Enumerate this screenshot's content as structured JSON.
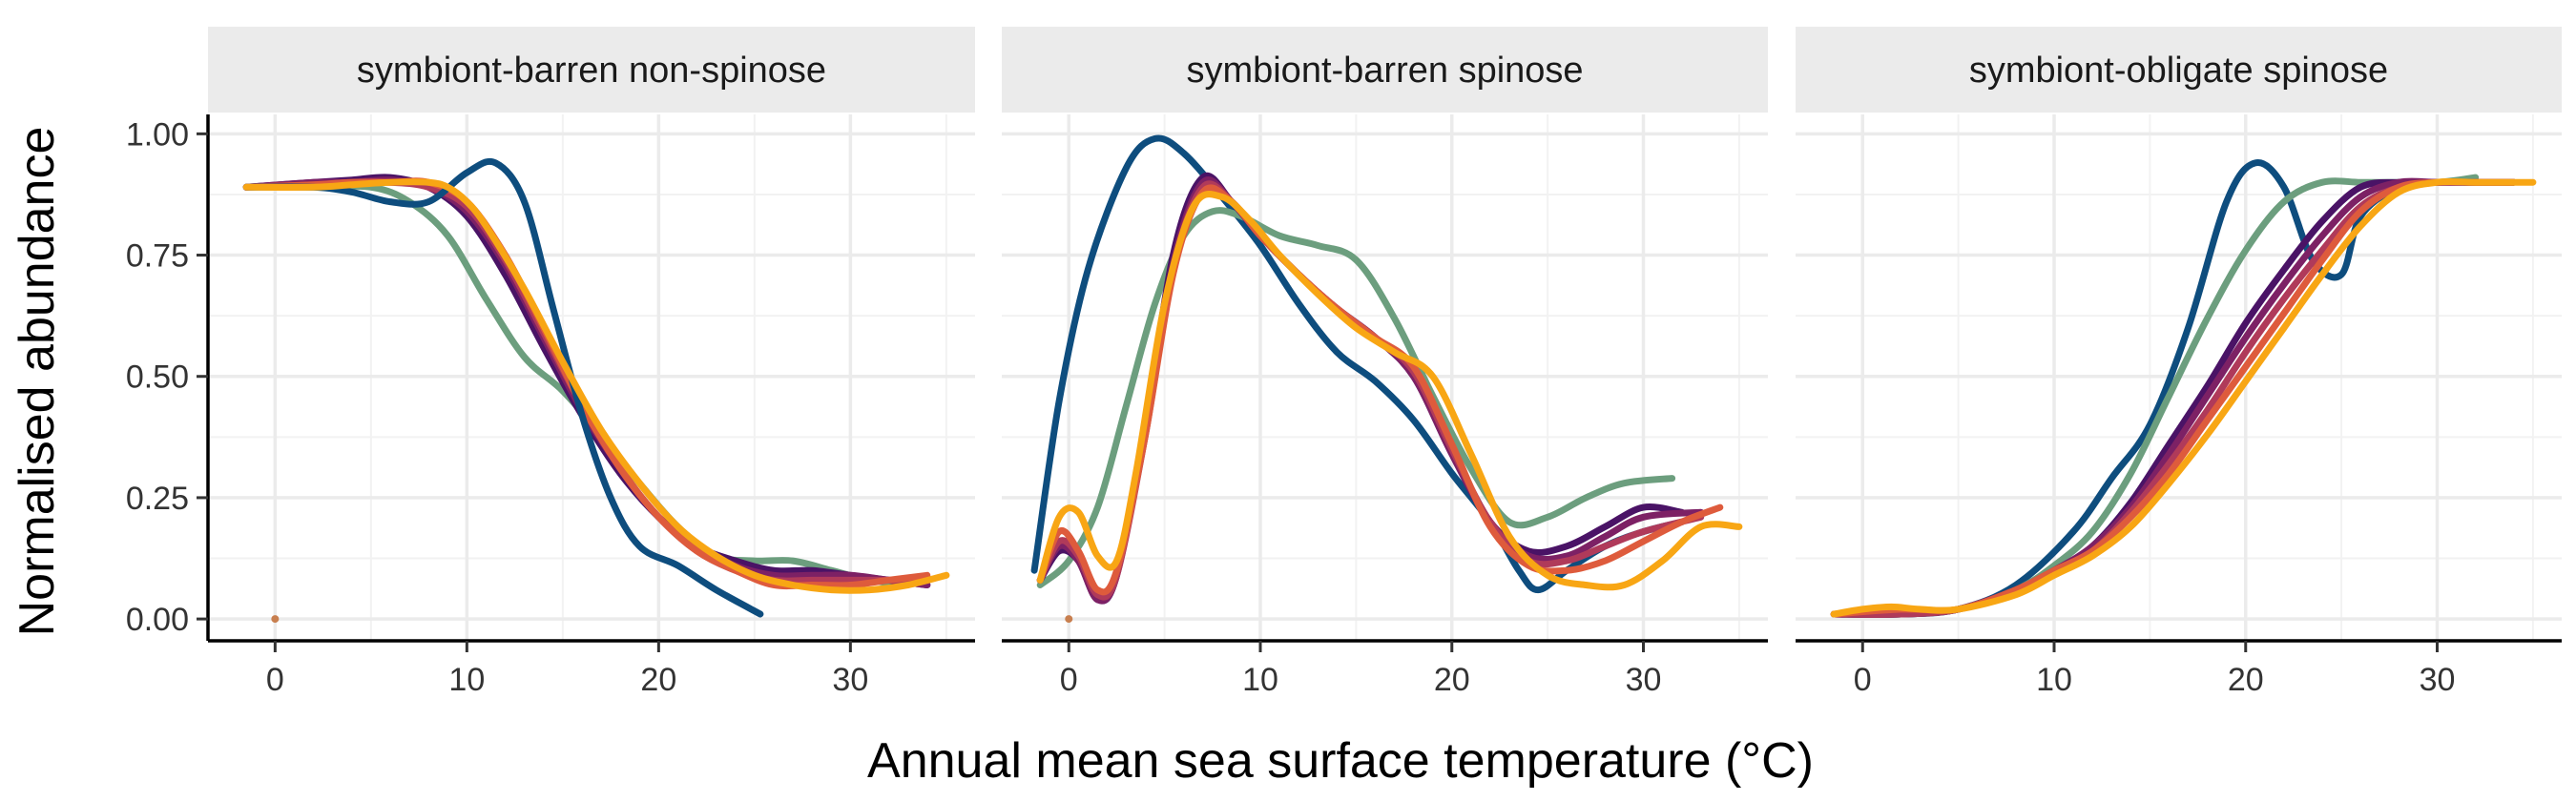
{
  "chart_data": {
    "type": "line",
    "xlabel": "Annual mean sea surface temperature (°C)",
    "ylabel": "Normalised abundance",
    "xlim": [
      -3.5,
      36.5
    ],
    "ylim": [
      -0.045,
      1.04
    ],
    "x_ticks": [
      0,
      10,
      20,
      30
    ],
    "y_ticks": [
      0.0,
      0.25,
      0.5,
      0.75,
      1.0
    ],
    "x_tick_labels": [
      "0",
      "10",
      "20",
      "30"
    ],
    "y_tick_labels": [
      "0.00",
      "0.25",
      "0.50",
      "0.75",
      "1.00"
    ],
    "grid": true,
    "legend": "none",
    "colors": [
      "#0e4d7e",
      "#6c9e7e",
      "#4a1366",
      "#7d2165",
      "#b03a5a",
      "#de5b3c",
      "#f8a614"
    ],
    "panels": [
      {
        "title": "symbiont-barren non-spinose",
        "points": [
          {
            "x": 0,
            "y": 0.0,
            "color": "#c87f4f"
          }
        ],
        "series": [
          {
            "color": "#6c9e7e",
            "x": [
              -1.5,
              2,
              5,
              7,
              9,
              11,
              13,
              15,
              17,
              19,
              21,
              23,
              25,
              27,
              29,
              31,
              33
            ],
            "y": [
              0.89,
              0.89,
              0.89,
              0.86,
              0.79,
              0.66,
              0.54,
              0.47,
              0.38,
              0.28,
              0.19,
              0.13,
              0.12,
              0.12,
              0.1,
              0.08,
              0.07
            ]
          },
          {
            "color": "#4a1366",
            "x": [
              -1.5,
              2,
              4,
              6,
              8,
              10,
              12,
              14,
              16,
              18,
              20,
              22,
              24,
              26,
              28,
              30,
              32,
              34
            ],
            "y": [
              0.89,
              0.9,
              0.905,
              0.91,
              0.89,
              0.83,
              0.71,
              0.56,
              0.42,
              0.3,
              0.21,
              0.15,
              0.12,
              0.1,
              0.1,
              0.09,
              0.08,
              0.07
            ]
          },
          {
            "color": "#7d2165",
            "x": [
              -1.5,
              2,
              4,
              6,
              8,
              10,
              12,
              14,
              16,
              18,
              20,
              22,
              24,
              26,
              28,
              30,
              32,
              34
            ],
            "y": [
              0.89,
              0.9,
              0.9,
              0.905,
              0.89,
              0.84,
              0.73,
              0.58,
              0.43,
              0.31,
              0.21,
              0.15,
              0.11,
              0.09,
              0.09,
              0.09,
              0.08,
              0.07
            ]
          },
          {
            "color": "#b03a5a",
            "x": [
              -1.5,
              2,
              4,
              6,
              8,
              10,
              12,
              14,
              16,
              18,
              20,
              22,
              24,
              26,
              28,
              30,
              32,
              34
            ],
            "y": [
              0.89,
              0.895,
              0.9,
              0.9,
              0.89,
              0.85,
              0.74,
              0.59,
              0.44,
              0.31,
              0.21,
              0.14,
              0.1,
              0.08,
              0.08,
              0.08,
              0.08,
              0.08
            ]
          },
          {
            "color": "#de5b3c",
            "x": [
              -1.5,
              2,
              4,
              6,
              8,
              10,
              12,
              14,
              16,
              18,
              20,
              22,
              24,
              26,
              28,
              30,
              32,
              34
            ],
            "y": [
              0.89,
              0.895,
              0.9,
              0.9,
              0.9,
              0.86,
              0.75,
              0.6,
              0.44,
              0.31,
              0.21,
              0.14,
              0.1,
              0.07,
              0.07,
              0.07,
              0.08,
              0.09
            ]
          },
          {
            "color": "#0e4d7e",
            "x": [
              -1.5,
              2,
              4,
              6,
              8,
              10,
              11.5,
              13,
              14.5,
              16,
              17.5,
              19,
              21,
              23,
              25.3
            ],
            "y": [
              0.89,
              0.89,
              0.88,
              0.86,
              0.86,
              0.92,
              0.94,
              0.86,
              0.64,
              0.42,
              0.25,
              0.15,
              0.11,
              0.06,
              0.01
            ]
          },
          {
            "color": "#f8a614",
            "x": [
              -1.5,
              2,
              4,
              6,
              8,
              9,
              10,
              11,
              13,
              15,
              17,
              19,
              21,
              23,
              25,
              27,
              29,
              31,
              33,
              35
            ],
            "y": [
              0.89,
              0.89,
              0.895,
              0.9,
              0.9,
              0.89,
              0.86,
              0.81,
              0.68,
              0.53,
              0.39,
              0.28,
              0.19,
              0.13,
              0.09,
              0.07,
              0.06,
              0.06,
              0.07,
              0.09
            ]
          }
        ]
      },
      {
        "title": "symbiont-barren spinose",
        "points": [
          {
            "x": 0,
            "y": 0.0,
            "color": "#c87f4f"
          }
        ],
        "series": [
          {
            "color": "#0e4d7e",
            "x": [
              -1.8,
              -0.5,
              1,
              3,
              4.5,
              6,
              8,
              10,
              12,
              14,
              16,
              18,
              20,
              22,
              23.5,
              24.5,
              26,
              28,
              30,
              32
            ],
            "y": [
              0.1,
              0.45,
              0.72,
              0.93,
              0.99,
              0.96,
              0.87,
              0.77,
              0.65,
              0.55,
              0.49,
              0.41,
              0.3,
              0.2,
              0.1,
              0.06,
              0.1,
              0.15,
              0.18,
              0.2
            ]
          },
          {
            "color": "#6c9e7e",
            "x": [
              -1.5,
              0,
              1.5,
              3,
              4.5,
              6,
              7.5,
              9,
              11,
              13,
              15,
              17,
              19,
              21,
              23,
              25,
              27,
              29,
              31.5
            ],
            "y": [
              0.07,
              0.12,
              0.23,
              0.44,
              0.65,
              0.79,
              0.84,
              0.83,
              0.79,
              0.77,
              0.74,
              0.62,
              0.46,
              0.31,
              0.2,
              0.21,
              0.25,
              0.28,
              0.29
            ]
          },
          {
            "color": "#4a1366",
            "x": [
              -1.5,
              -0.5,
              0.5,
              1.5,
              2.5,
              4,
              5.5,
              7,
              8.5,
              10,
              12,
              14,
              16,
              18,
              20,
              22,
              24,
              26,
              28,
              30,
              32
            ],
            "y": [
              0.08,
              0.14,
              0.12,
              0.04,
              0.09,
              0.4,
              0.76,
              0.91,
              0.86,
              0.79,
              0.71,
              0.64,
              0.58,
              0.5,
              0.34,
              0.2,
              0.14,
              0.15,
              0.19,
              0.23,
              0.22
            ]
          },
          {
            "color": "#7d2165",
            "x": [
              -1.5,
              -0.5,
              0.5,
              1.5,
              2.5,
              4,
              5.5,
              7,
              8.5,
              10,
              12,
              14,
              16,
              18,
              20,
              22,
              24,
              26,
              28,
              30,
              33
            ],
            "y": [
              0.08,
              0.15,
              0.12,
              0.04,
              0.09,
              0.39,
              0.74,
              0.9,
              0.86,
              0.79,
              0.71,
              0.64,
              0.58,
              0.5,
              0.34,
              0.2,
              0.13,
              0.13,
              0.17,
              0.21,
              0.22
            ]
          },
          {
            "color": "#b03a5a",
            "x": [
              -1.5,
              -0.5,
              0.5,
              1.5,
              2.5,
              4,
              5.5,
              7,
              8.5,
              10,
              12,
              14,
              16,
              18,
              20,
              22,
              24,
              26,
              28,
              30,
              33
            ],
            "y": [
              0.08,
              0.16,
              0.13,
              0.05,
              0.09,
              0.38,
              0.73,
              0.89,
              0.86,
              0.79,
              0.71,
              0.64,
              0.58,
              0.51,
              0.35,
              0.2,
              0.12,
              0.12,
              0.15,
              0.18,
              0.21
            ]
          },
          {
            "color": "#de5b3c",
            "x": [
              -1.5,
              -0.5,
              0.5,
              1.5,
              2.5,
              4,
              5.5,
              7,
              8.5,
              10,
              12,
              14,
              16,
              18,
              20,
              22,
              24,
              26,
              28,
              30,
              32,
              34
            ],
            "y": [
              0.08,
              0.18,
              0.14,
              0.06,
              0.1,
              0.38,
              0.72,
              0.88,
              0.86,
              0.79,
              0.71,
              0.64,
              0.58,
              0.52,
              0.36,
              0.19,
              0.11,
              0.1,
              0.12,
              0.16,
              0.2,
              0.23
            ]
          },
          {
            "color": "#f8a614",
            "x": [
              -1.5,
              -0.5,
              0.5,
              1.5,
              2.5,
              3.5,
              5,
              6.5,
              8,
              9.5,
              11,
              13,
              15,
              17,
              19,
              21,
              23,
              25,
              27,
              29,
              31,
              33,
              35
            ],
            "y": [
              0.08,
              0.21,
              0.22,
              0.13,
              0.12,
              0.3,
              0.65,
              0.85,
              0.87,
              0.82,
              0.75,
              0.67,
              0.6,
              0.55,
              0.5,
              0.34,
              0.17,
              0.09,
              0.07,
              0.07,
              0.12,
              0.19,
              0.19
            ]
          }
        ]
      },
      {
        "title": "symbiont-obligate spinose",
        "points": [],
        "series": [
          {
            "color": "#0e4d7e",
            "x": [
              -1.5,
              2,
              5,
              8,
              11,
              13,
              15,
              17,
              19,
              20.5,
              22,
              23.5,
              25,
              26,
              28,
              30,
              32,
              34
            ],
            "y": [
              0.01,
              0.01,
              0.02,
              0.07,
              0.18,
              0.29,
              0.4,
              0.6,
              0.86,
              0.94,
              0.89,
              0.74,
              0.71,
              0.83,
              0.89,
              0.9,
              0.9,
              0.9
            ]
          },
          {
            "color": "#6c9e7e",
            "x": [
              -1.5,
              2,
              5,
              8,
              10,
              12,
              14,
              16,
              18,
              20,
              22,
              24,
              26,
              28,
              30,
              32
            ],
            "y": [
              0.01,
              0.01,
              0.02,
              0.06,
              0.11,
              0.18,
              0.3,
              0.46,
              0.62,
              0.76,
              0.86,
              0.9,
              0.9,
              0.9,
              0.9,
              0.91
            ]
          },
          {
            "color": "#4a1366",
            "x": [
              -1.5,
              2,
              5,
              8,
              10,
              12,
              14,
              16,
              18,
              20,
              22,
              24,
              26,
              28,
              30,
              32,
              34
            ],
            "y": [
              0.01,
              0.01,
              0.02,
              0.06,
              0.1,
              0.15,
              0.24,
              0.36,
              0.48,
              0.61,
              0.72,
              0.82,
              0.89,
              0.9,
              0.9,
              0.9,
              0.9
            ]
          },
          {
            "color": "#7d2165",
            "x": [
              -1.5,
              2,
              5,
              8,
              10,
              12,
              14,
              16,
              18,
              20,
              22,
              24,
              26,
              28,
              30,
              32,
              34
            ],
            "y": [
              0.01,
              0.01,
              0.02,
              0.06,
              0.1,
              0.15,
              0.23,
              0.34,
              0.46,
              0.58,
              0.69,
              0.79,
              0.87,
              0.9,
              0.9,
              0.9,
              0.9
            ]
          },
          {
            "color": "#b03a5a",
            "x": [
              -1.5,
              2,
              5,
              8,
              10,
              12,
              14,
              16,
              18,
              20,
              22,
              24,
              26,
              28,
              30,
              32,
              34
            ],
            "y": [
              0.01,
              0.01,
              0.02,
              0.06,
              0.1,
              0.14,
              0.22,
              0.32,
              0.43,
              0.55,
              0.66,
              0.76,
              0.85,
              0.89,
              0.9,
              0.9,
              0.9
            ]
          },
          {
            "color": "#de5b3c",
            "x": [
              -1.5,
              2,
              5,
              8,
              10,
              12,
              14,
              16,
              18,
              20,
              22,
              24,
              26,
              28,
              30,
              32,
              34
            ],
            "y": [
              0.01,
              0.02,
              0.02,
              0.06,
              0.1,
              0.14,
              0.21,
              0.3,
              0.41,
              0.52,
              0.63,
              0.74,
              0.84,
              0.89,
              0.9,
              0.9,
              0.9
            ]
          },
          {
            "color": "#f8a614",
            "x": [
              -1.5,
              0,
              1.5,
              3,
              5,
              8,
              10,
              12,
              14,
              16,
              18,
              20,
              22,
              24,
              26,
              28,
              30,
              32,
              35
            ],
            "y": [
              0.01,
              0.02,
              0.025,
              0.02,
              0.02,
              0.05,
              0.09,
              0.13,
              0.19,
              0.28,
              0.38,
              0.49,
              0.6,
              0.71,
              0.81,
              0.88,
              0.9,
              0.9,
              0.9
            ]
          }
        ]
      }
    ]
  }
}
